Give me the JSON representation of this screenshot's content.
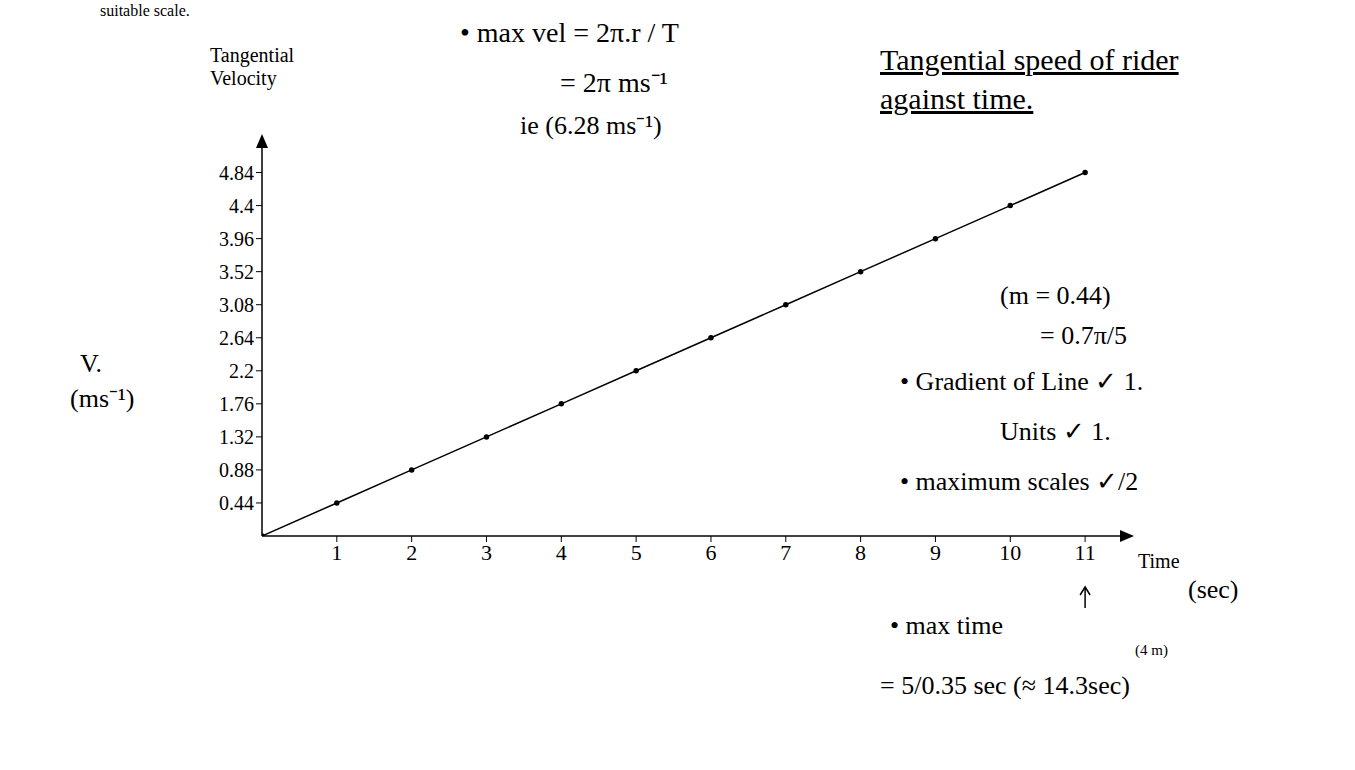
{
  "chart_data": {
    "type": "line",
    "title": "Tangential speed of rider against time.",
    "header": "suitable scale.",
    "x_label": "Time",
    "x_unit": "(sec)",
    "y_label": "Tangential Velocity",
    "y_symbol": "V.",
    "y_unit": "(ms⁻¹)",
    "x": [
      0,
      1,
      2,
      3,
      4,
      5,
      6,
      7,
      8,
      9,
      10,
      11
    ],
    "values": [
      0,
      0.44,
      0.88,
      1.32,
      1.76,
      2.2,
      2.64,
      3.08,
      3.52,
      3.96,
      4.4,
      4.84
    ],
    "xlim": [
      0,
      11.6
    ],
    "ylim": [
      0,
      5.3
    ],
    "xticks": [
      1,
      2,
      3,
      4,
      5,
      6,
      7,
      8,
      9,
      10,
      11
    ],
    "yticks": [
      0.44,
      0.88,
      1.32,
      1.76,
      2.2,
      2.64,
      3.08,
      3.52,
      3.96,
      4.4,
      4.84
    ],
    "color": "#000000",
    "marker": "dot",
    "annotations": [
      "• max vel = 2π.r / T",
      "= 2π ms⁻¹",
      "ie (6.28 ms⁻¹)",
      "(m = 0.44)",
      "= 0.7π/5",
      "• Gradient of Line ✓ 1.",
      "Units ✓ 1.",
      "• maximum scales ✓/2",
      "• max time",
      "(4 m)",
      "= 5/0.35 sec (≈ 14.3sec)"
    ]
  }
}
